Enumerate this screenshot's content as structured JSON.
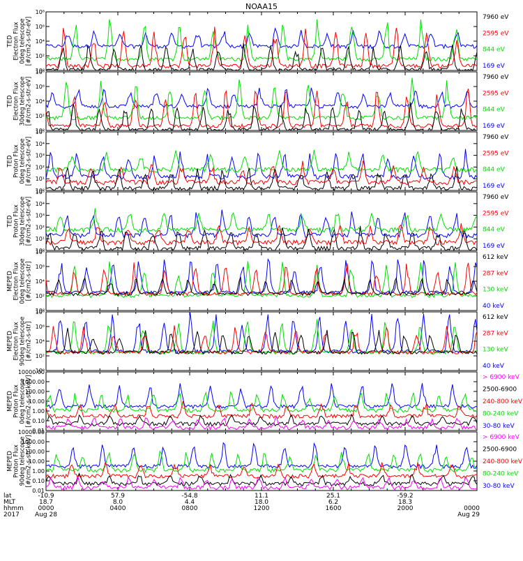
{
  "title": "NOAA15",
  "colors": {
    "black": "#000000",
    "red": "#ff0000",
    "green": "#00e000",
    "blue": "#0000ff",
    "magenta": "#ff00ff"
  },
  "chart_data": [
    {
      "type": "line",
      "panel": 1,
      "ylabel": [
        "TED",
        "Electron Flux",
        "0deg telescope",
        "[#/cm2-s-str-eV]"
      ],
      "scale": "log",
      "ylim": [
        1,
        1000000
      ],
      "yticks": [
        "10⁰",
        "10²",
        "10⁴",
        "10⁶",
        "10⁸"
      ],
      "series": [
        {
          "name": "7960 eV",
          "color": "black",
          "baseline": 1.2,
          "peak": 1000
        },
        {
          "name": "2595 eV",
          "color": "red",
          "baseline": 3,
          "peak": 30000
        },
        {
          "name": "844 eV",
          "color": "green",
          "baseline": 15,
          "peak": 300000
        },
        {
          "name": "169 eV",
          "color": "blue",
          "baseline": 300,
          "peak": 20000
        }
      ]
    },
    {
      "type": "line",
      "panel": 2,
      "ylabel": [
        "TED",
        "Electron Flux",
        "30deg telescope",
        "[#/cm2-s-str-eV]"
      ],
      "scale": "log",
      "ylim": [
        1,
        1000000
      ],
      "yticks": [
        "10⁰",
        "10²",
        "10⁴",
        "10⁶",
        "10⁸"
      ],
      "series": [
        {
          "name": "7960 eV",
          "color": "black",
          "baseline": 1.2,
          "peak": 1000
        },
        {
          "name": "2595 eV",
          "color": "red",
          "baseline": 3,
          "peak": 30000
        },
        {
          "name": "844 eV",
          "color": "green",
          "baseline": 20,
          "peak": 300000
        },
        {
          "name": "169 eV",
          "color": "blue",
          "baseline": 300,
          "peak": 20000
        }
      ]
    },
    {
      "type": "line",
      "panel": 3,
      "ylabel": [
        "TED",
        "Proton Flux",
        "0deg telescope",
        "[#/cm2-s-str-eV]"
      ],
      "scale": "log",
      "ylim": [
        1,
        100000
      ],
      "yticks": [
        "10⁰",
        "10¹",
        "10²",
        "10³",
        "10⁴",
        "10⁵"
      ],
      "series": [
        {
          "name": "7960 eV",
          "color": "black",
          "baseline": 1.5,
          "peak": 100
        },
        {
          "name": "2595 eV",
          "color": "red",
          "baseline": 5,
          "peak": 300
        },
        {
          "name": "844 eV",
          "color": "green",
          "baseline": 60,
          "peak": 3000
        },
        {
          "name": "169 eV",
          "color": "blue",
          "baseline": 15,
          "peak": 3000
        }
      ]
    },
    {
      "type": "line",
      "panel": 4,
      "ylabel": [
        "TED",
        "Proton Flux",
        "30deg telescope",
        "[#/cm2-s-str-eV]"
      ],
      "scale": "log",
      "ylim": [
        1,
        100000
      ],
      "yticks": [
        "10⁰",
        "10¹",
        "10²",
        "10³",
        "10⁴",
        "10⁵"
      ],
      "series": [
        {
          "name": "7960 eV",
          "color": "black",
          "baseline": 1.5,
          "peak": 100
        },
        {
          "name": "2595 eV",
          "color": "red",
          "baseline": 5,
          "peak": 300
        },
        {
          "name": "844 eV",
          "color": "green",
          "baseline": 60,
          "peak": 3000
        },
        {
          "name": "169 eV",
          "color": "blue",
          "baseline": 20,
          "peak": 3000
        }
      ]
    },
    {
      "type": "line",
      "panel": 5,
      "ylabel": [
        "MEPED",
        "Electron Flux",
        "0deg telescope",
        "[#/cm2-s-str]"
      ],
      "scale": "log",
      "ylim": [
        1,
        10000000
      ],
      "yticks": [
        "10⁰",
        "10²",
        "10⁴",
        "10⁶",
        "10⁸"
      ],
      "series": [
        {
          "name": "612 keV",
          "color": "black",
          "baseline": 100,
          "peak": 10000
        },
        {
          "name": "287 keV",
          "color": "red",
          "baseline": 100,
          "peak": 1000000
        },
        {
          "name": "130 keV",
          "color": "green",
          "baseline": 60,
          "peak": 1000000
        },
        {
          "name": "40 keV",
          "color": "blue",
          "baseline": 150,
          "peak": 3000000
        }
      ]
    },
    {
      "type": "line",
      "panel": 6,
      "ylabel": [
        "MEPED",
        "Electron Flux",
        "90deg telescope",
        "[#/cm2-s-str]"
      ],
      "scale": "log",
      "ylim": [
        1,
        10000000
      ],
      "yticks": [
        "10⁰",
        "10²",
        "10⁴",
        "10⁶",
        "10⁸"
      ],
      "series": [
        {
          "name": "612 keV",
          "color": "black",
          "baseline": 150,
          "peak": 100000
        },
        {
          "name": "287 keV",
          "color": "red",
          "baseline": 150,
          "peak": 300000
        },
        {
          "name": "130 keV",
          "color": "green",
          "baseline": 150,
          "peak": 3000000
        },
        {
          "name": "40 keV",
          "color": "blue",
          "baseline": 200,
          "peak": 10000000
        }
      ]
    },
    {
      "type": "line",
      "panel": 7,
      "ylabel": [
        "MEPED",
        "Proton Flux",
        "0deg telescope",
        "[#/cm2-s-str-keV]"
      ],
      "scale": "log",
      "ylim": [
        0.01,
        10000
      ],
      "yticks": [
        "0.01",
        "0.10",
        "1.00",
        "10.00",
        "100.00",
        "1000.00",
        "10000.00"
      ],
      "series": [
        {
          "name": "> 6900 keV",
          "color": "magenta",
          "baseline": 0.02,
          "peak": 0.3
        },
        {
          "name": "2500-6900",
          "color": "black",
          "baseline": 0.05,
          "peak": 0.5
        },
        {
          "name": "240-800 keV",
          "color": "red",
          "baseline": 0.3,
          "peak": 10
        },
        {
          "name": "80-240 keV",
          "color": "green",
          "baseline": 1.2,
          "peak": 100
        },
        {
          "name": "30-80 keV",
          "color": "blue",
          "baseline": 3,
          "peak": 1000
        }
      ]
    },
    {
      "type": "line",
      "panel": 8,
      "ylabel": [
        "MEPED",
        "Proton Flux",
        "90deg telescope",
        "[#/cm2-s-str-keV]"
      ],
      "scale": "log",
      "ylim": [
        0.01,
        10000
      ],
      "yticks": [
        "0.01",
        "0.10",
        "1.00",
        "10.00",
        "100.00",
        "1000.00",
        "10000.00"
      ],
      "series": [
        {
          "name": "> 6900 keV",
          "color": "magenta",
          "baseline": 0.02,
          "peak": 0.3
        },
        {
          "name": "2500-6900",
          "color": "black",
          "baseline": 0.05,
          "peak": 0.5
        },
        {
          "name": "240-800 keV",
          "color": "red",
          "baseline": 0.3,
          "peak": 10
        },
        {
          "name": "80-240 keV",
          "color": "green",
          "baseline": 1.2,
          "peak": 100
        },
        {
          "name": "30-80 keV",
          "color": "blue",
          "baseline": 3,
          "peak": 1000
        }
      ]
    }
  ],
  "x_axis": {
    "row_labels": [
      "lat",
      "MLT",
      "hhmm",
      "2017"
    ],
    "ticks": [
      {
        "lat": "-10.9",
        "mlt": "18.7",
        "hhmm": "0000",
        "date": "Aug 28"
      },
      {
        "lat": "57.9",
        "mlt": "8.0",
        "hhmm": "0400",
        "date": ""
      },
      {
        "lat": "-54.8",
        "mlt": "4.4",
        "hhmm": "0800",
        "date": ""
      },
      {
        "lat": "11.1",
        "mlt": "18.0",
        "hhmm": "1200",
        "date": ""
      },
      {
        "lat": "25.1",
        "mlt": "6.2",
        "hhmm": "1600",
        "date": ""
      },
      {
        "lat": "-59.2",
        "mlt": "18.3",
        "hhmm": "2000",
        "date": ""
      },
      {
        "lat": "",
        "mlt": "",
        "hhmm": "0000",
        "date": "Aug 29"
      }
    ]
  }
}
